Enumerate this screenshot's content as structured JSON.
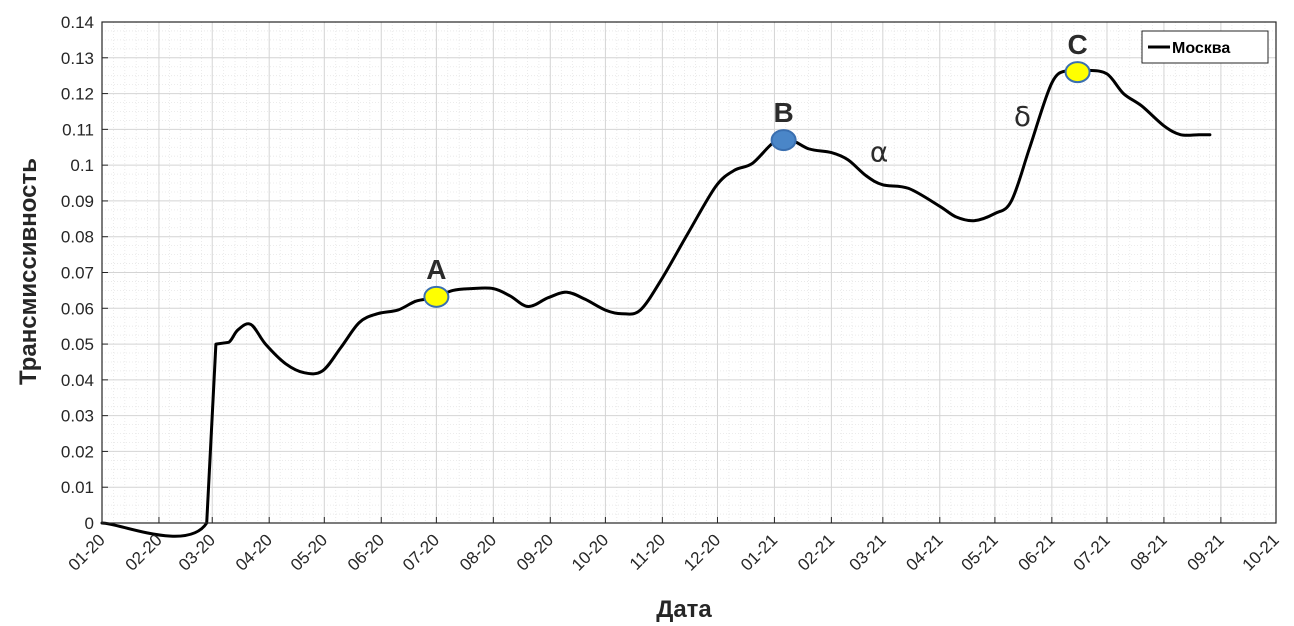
{
  "chart_data": {
    "type": "line",
    "xlabel": "Дата",
    "ylabel": "Трансмиссивность",
    "ylim": [
      0,
      0.14
    ],
    "yticks": [
      0,
      0.01,
      0.02,
      0.03,
      0.04,
      0.05,
      0.06,
      0.07,
      0.08,
      0.09,
      0.1,
      0.11,
      0.12,
      0.13,
      0.14
    ],
    "ytick_labels": [
      "0",
      "0.01",
      "0.02",
      "0.03",
      "0.04",
      "0.05",
      "0.06",
      "0.07",
      "0.08",
      "0.09",
      "0.1",
      "0.11",
      "0.12",
      "0.13",
      "0.14"
    ],
    "xlim": [
      "2020-01-01",
      "2021-10-01"
    ],
    "xticks": [
      "2020-01-01",
      "2020-02-01",
      "2020-03-01",
      "2020-04-01",
      "2020-05-01",
      "2020-06-01",
      "2020-07-01",
      "2020-08-01",
      "2020-09-01",
      "2020-10-01",
      "2020-11-01",
      "2020-12-01",
      "2021-01-01",
      "2021-02-01",
      "2021-03-01",
      "2021-04-01",
      "2021-05-01",
      "2021-06-01",
      "2021-07-01",
      "2021-08-01",
      "2021-09-01",
      "2021-10-01"
    ],
    "xtick_labels": [
      "01-20",
      "02-20",
      "03-20",
      "04-20",
      "05-20",
      "06-20",
      "07-20",
      "08-20",
      "09-20",
      "10-20",
      "11-20",
      "12-20",
      "01-21",
      "02-21",
      "03-21",
      "04-21",
      "05-21",
      "06-21",
      "07-21",
      "08-21",
      "09-21",
      "10-21"
    ],
    "grid": true,
    "legend": {
      "position": "top-right",
      "entries": [
        "Москва"
      ]
    },
    "series": [
      {
        "name": "Москва",
        "color": "#000000",
        "x": [
          "2020-01-01",
          "2020-02-27",
          "2020-03-03",
          "2020-03-10",
          "2020-03-15",
          "2020-03-22",
          "2020-03-30",
          "2020-04-10",
          "2020-04-20",
          "2020-04-30",
          "2020-05-10",
          "2020-05-20",
          "2020-05-30",
          "2020-06-10",
          "2020-06-20",
          "2020-06-30",
          "2020-07-10",
          "2020-07-20",
          "2020-08-01",
          "2020-08-10",
          "2020-08-20",
          "2020-08-31",
          "2020-09-10",
          "2020-09-20",
          "2020-10-01",
          "2020-10-10",
          "2020-10-20",
          "2020-11-01",
          "2020-11-15",
          "2020-11-30",
          "2020-12-10",
          "2020-12-20",
          "2021-01-01",
          "2021-01-10",
          "2021-01-20",
          "2021-02-01",
          "2021-02-10",
          "2021-02-20",
          "2021-03-01",
          "2021-03-15",
          "2021-04-01",
          "2021-04-10",
          "2021-04-20",
          "2021-05-01",
          "2021-05-10",
          "2021-05-20",
          "2021-06-01",
          "2021-06-10",
          "2021-06-20",
          "2021-07-01",
          "2021-07-10",
          "2021-07-20",
          "2021-08-01",
          "2021-08-10",
          "2021-08-20",
          "2021-08-26"
        ],
        "values": [
          0,
          0,
          0.05,
          0.0505,
          0.054,
          0.0555,
          0.05,
          0.0445,
          0.042,
          0.0425,
          0.049,
          0.056,
          0.0585,
          0.0595,
          0.062,
          0.063,
          0.065,
          0.0655,
          0.0655,
          0.0635,
          0.0605,
          0.063,
          0.0645,
          0.0625,
          0.0595,
          0.0585,
          0.0595,
          0.0685,
          0.081,
          0.094,
          0.0985,
          0.1005,
          0.1065,
          0.107,
          0.1045,
          0.1035,
          0.1015,
          0.097,
          0.0945,
          0.0935,
          0.0885,
          0.0855,
          0.0845,
          0.0865,
          0.09,
          0.105,
          0.123,
          0.1265,
          0.1265,
          0.1255,
          0.12,
          0.1165,
          0.111,
          0.1085,
          0.1085,
          0.1085
        ]
      }
    ],
    "markers": [
      {
        "label": "A",
        "x": "2020-07-01",
        "y": 0.0632,
        "color": "#ffff00"
      },
      {
        "label": "B",
        "x": "2021-01-06",
        "y": 0.107,
        "color": "#4a86c8"
      },
      {
        "label": "C",
        "x": "2021-06-15",
        "y": 0.126,
        "color": "#ffff00"
      }
    ],
    "annotations": [
      {
        "text": "α",
        "x": "2021-02-27",
        "y": 0.101
      },
      {
        "text": "δ",
        "x": "2021-05-16",
        "y": 0.111
      }
    ]
  }
}
